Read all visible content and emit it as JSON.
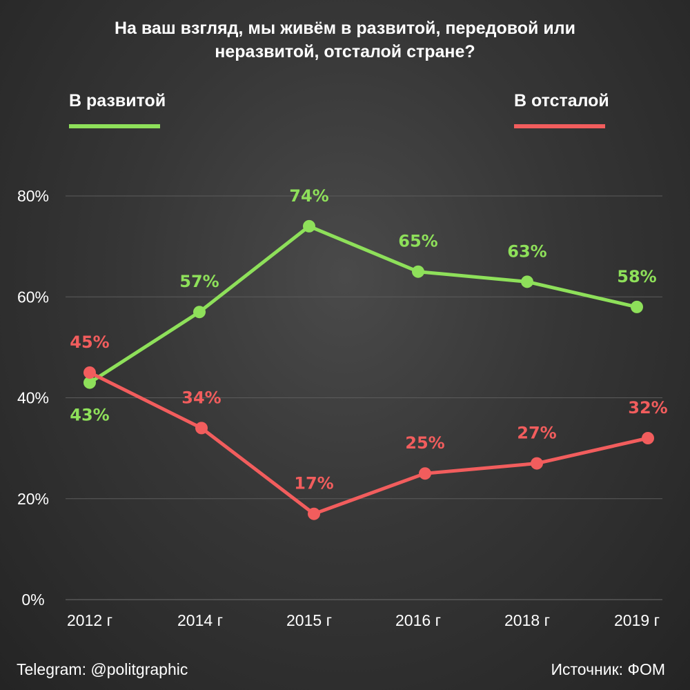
{
  "chart_data": {
    "type": "line",
    "title_lines": [
      "На ваш взгляд, мы живём в развитой, передовой или",
      "неразвитой, отсталой стране?"
    ],
    "categories": [
      "2012 г",
      "2014 г",
      "2015 г",
      "2016 г",
      "2018 г",
      "2019 г"
    ],
    "ylim": [
      0,
      80
    ],
    "yticks": [
      0,
      20,
      40,
      60,
      80
    ],
    "ytick_labels": [
      "0%",
      "20%",
      "40%",
      "60%",
      "80%"
    ],
    "grid": true,
    "legend_placement": "top",
    "series": [
      {
        "name": "В развитой",
        "color": "#8ee05a",
        "values": [
          43,
          57,
          74,
          65,
          63,
          58
        ],
        "labels": [
          "43%",
          "57%",
          "74%",
          "65%",
          "63%",
          "58%"
        ],
        "label_positions": [
          "below",
          "above",
          "above",
          "above",
          "above",
          "above"
        ]
      },
      {
        "name": "В отсталой",
        "color": "#f25d5d",
        "values": [
          45,
          34,
          17,
          25,
          27,
          32
        ],
        "labels": [
          "45%",
          "34%",
          "17%",
          "25%",
          "27%",
          "32%"
        ],
        "label_positions": [
          "above",
          "above",
          "above",
          "above",
          "above",
          "above"
        ]
      }
    ]
  },
  "legend": {
    "green_label": "В развитой",
    "red_label": "В отсталой"
  },
  "footer": {
    "left": "Telegram: @politgraphic",
    "right": "Источник: ФОМ"
  }
}
